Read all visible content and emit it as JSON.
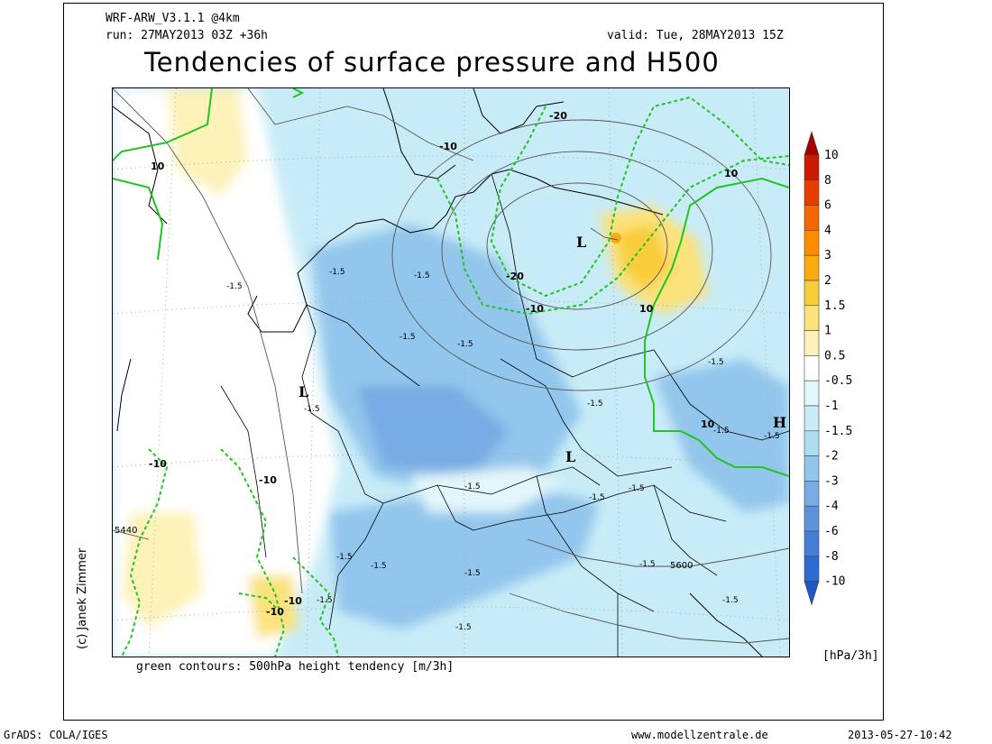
{
  "header": {
    "model": "WRF-ARW_V3.1.1 @4km",
    "run": "run: 27MAY2013 03Z +36h",
    "valid": "valid: Tue, 28MAY2013 15Z"
  },
  "title": "Tendencies of surface pressure and H500",
  "subtitle_note": "green contours: 500hPa height tendency [m/3h]",
  "author": "(c) Janek Zimmer",
  "units": "[hPa/3h]",
  "footer": {
    "left": "GrADS: COLA/IGES",
    "center": "www.modellzentrale.de",
    "right": "2013-05-27-10:42"
  },
  "colorbar": {
    "labels": [
      "10",
      "8",
      "6",
      "4",
      "3",
      "2",
      "1.5",
      "1",
      "0.5",
      "-0.5",
      "-1",
      "-1.5",
      "-2",
      "-3",
      "-4",
      "-6",
      "-8",
      "-10"
    ],
    "colors": [
      "#a50000",
      "#cc1a00",
      "#e63c00",
      "#f56600",
      "#fa8c00",
      "#fbab10",
      "#f9cd3a",
      "#fbe27a",
      "#fdf2b8",
      "#ffffff",
      "#e3f6fb",
      "#c8ecf7",
      "#aedcf1",
      "#93c6ec",
      "#77ace4",
      "#5c94dc",
      "#437fd6",
      "#2d6acf",
      "#1e57c6"
    ]
  },
  "map_labels": {
    "pressure_lows": [
      "L",
      "L",
      "L"
    ],
    "pressure_highs": [
      "H"
    ],
    "height_tendency": [
      "10",
      "-10",
      "-20",
      "-20",
      "-10",
      "10",
      "10",
      "10",
      "-10",
      "-10",
      "-10",
      "-10"
    ],
    "pressure_tendency": [
      "-1.5",
      "-1.5",
      "-1.5",
      "-1.5",
      "-1.5",
      "-1.5",
      "-1.5",
      "-1.5",
      "-1.5",
      "-1.5",
      "-1.5",
      "-1.5",
      "-1.5",
      "-1.5",
      "-1.5",
      "-1.5",
      "-1.5",
      "-1.5",
      "-1.5",
      "-1.5"
    ],
    "geopotential": [
      "5440",
      "5600"
    ]
  },
  "colors": {
    "height_contour": "#22c422",
    "coast": "#000000",
    "geopotential_contour": "#555555"
  }
}
